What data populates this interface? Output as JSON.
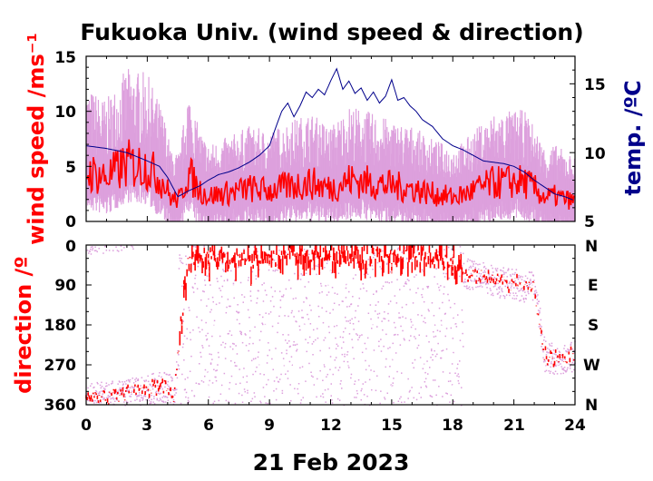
{
  "chart_data": [
    {
      "type": "line",
      "title": "Fukuoka Univ. (wind speed & direction)",
      "ylabel": "wind speed /ms⁻¹",
      "y2label": "temp. /ºC",
      "xlim": [
        0,
        24
      ],
      "ylim": [
        0,
        15
      ],
      "y2lim": [
        5,
        17
      ],
      "yticks": [
        0,
        5,
        10,
        15
      ],
      "y2ticks": [
        5,
        10,
        15
      ],
      "grid": false,
      "colors": {
        "gust": "#dda0dd",
        "mean_speed": "#ff0000",
        "temperature": "#00008b",
        "ylabel": "#ff0000",
        "y2label": "#00008b"
      },
      "series": [
        {
          "axis": "right",
          "role": "temperature",
          "x": [
            0,
            1,
            2,
            3,
            3.6,
            4,
            4.5,
            5,
            5.6,
            6,
            6.5,
            7,
            7.5,
            8,
            8.5,
            9,
            9.3,
            9.6,
            9.9,
            10.2,
            10.5,
            10.8,
            11.1,
            11.4,
            11.7,
            12,
            12.3,
            12.6,
            12.9,
            13.2,
            13.5,
            13.8,
            14.1,
            14.4,
            14.7,
            15,
            15.3,
            15.6,
            15.9,
            16.2,
            16.5,
            17,
            17.5,
            18,
            18.5,
            19,
            19.5,
            20,
            20.5,
            21,
            21.5,
            22,
            22.5,
            23,
            23.5,
            24
          ],
          "values": [
            10.5,
            10.3,
            10.0,
            9.4,
            9.0,
            8.2,
            6.8,
            7.2,
            7.6,
            8.0,
            8.4,
            8.6,
            8.9,
            9.3,
            9.8,
            10.5,
            11.8,
            13.0,
            13.6,
            12.6,
            13.4,
            14.4,
            14.0,
            14.6,
            14.2,
            15.2,
            16.1,
            14.6,
            15.2,
            14.3,
            14.7,
            13.8,
            14.4,
            13.6,
            14.1,
            15.3,
            13.8,
            14.0,
            13.4,
            13.0,
            12.4,
            11.9,
            11.0,
            10.5,
            10.2,
            9.8,
            9.4,
            9.3,
            9.2,
            9.0,
            8.6,
            8.0,
            7.5,
            7.0,
            6.8,
            6.5
          ]
        },
        {
          "axis": "left",
          "role": "mean wind speed (trend)",
          "x": [
            0,
            1,
            2,
            3,
            3.8,
            4.2,
            4.6,
            5,
            5.5,
            6,
            7,
            8,
            9,
            10,
            11,
            12,
            13,
            14,
            15,
            16,
            17,
            18,
            18.5,
            19,
            20,
            21,
            21.5,
            22,
            22.5,
            23,
            24
          ],
          "values": [
            4.5,
            4.0,
            5.2,
            5.0,
            3.5,
            2.0,
            2.0,
            4.5,
            3.0,
            2.3,
            2.6,
            3.0,
            2.8,
            3.2,
            3.5,
            3.0,
            3.8,
            3.5,
            3.2,
            3.0,
            2.5,
            2.2,
            2.4,
            2.8,
            3.5,
            3.6,
            3.6,
            3.0,
            2.2,
            2.3,
            1.8
          ]
        }
      ]
    },
    {
      "type": "scatter",
      "ylabel": "direction /º",
      "xlabel": "21 Feb 2023",
      "xlim": [
        0,
        24
      ],
      "ylim": [
        360,
        0
      ],
      "xticks": [
        0,
        3,
        6,
        9,
        12,
        15,
        18,
        21,
        24
      ],
      "yticks": [
        0,
        90,
        180,
        270,
        360
      ],
      "y2ticks": [
        "N",
        "E",
        "S",
        "W",
        "N"
      ],
      "grid": true,
      "colors": {
        "points": "#dda0dd",
        "mean_direction": "#ff0000"
      },
      "series": [
        {
          "role": "mean direction (trend)",
          "x": [
            0,
            1,
            2,
            3,
            4,
            4.3,
            5,
            6,
            8,
            10,
            12,
            14,
            16,
            17,
            18,
            18.5,
            19,
            20,
            21,
            21.5,
            22,
            22.5,
            23,
            23.5,
            24
          ],
          "values": [
            345,
            342,
            335,
            325,
            318,
            340,
            30,
            25,
            35,
            20,
            25,
            28,
            25,
            30,
            40,
            60,
            68,
            80,
            88,
            92,
            95,
            250,
            255,
            252,
            250
          ]
        }
      ]
    }
  ],
  "text": {
    "title": "Fukuoka Univ. (wind speed & direction)",
    "speed_ylabel": "wind speed /ms⁻¹",
    "temp_ylabel": "temp. /ºC",
    "dir_ylabel": "direction /º",
    "xlabel": "21 Feb 2023",
    "speed_ticks": [
      "0",
      "5",
      "10",
      "15"
    ],
    "temp_ticks": [
      "5",
      "10",
      "15"
    ],
    "dir_ticks": [
      "0",
      "90",
      "180",
      "270",
      "360"
    ],
    "compass_ticks": [
      "N",
      "E",
      "S",
      "W",
      "N"
    ],
    "x_ticks": [
      "0",
      "3",
      "6",
      "9",
      "12",
      "15",
      "18",
      "21",
      "24"
    ]
  }
}
